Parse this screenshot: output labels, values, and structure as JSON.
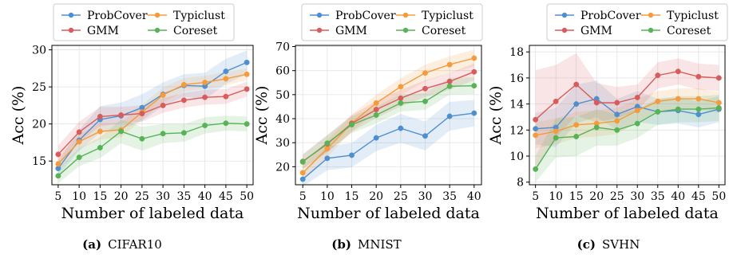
{
  "chart_data": [
    {
      "type": "line",
      "caption": {
        "letter": "(a)",
        "name": "CIFAR10"
      },
      "xlabel": "Number of labeled data",
      "ylabel": "Acc (%)",
      "x": [
        5,
        10,
        15,
        20,
        25,
        30,
        35,
        40,
        45,
        50
      ],
      "xlim": [
        3.5,
        51.5
      ],
      "ylim": [
        11.8,
        30.6
      ],
      "yticks": [
        15,
        20,
        25,
        30
      ],
      "grid": true,
      "legend": "top",
      "series": [
        {
          "name": "ProbCover",
          "color": "#4f8fce",
          "values": [
            14.0,
            17.8,
            20.6,
            21.1,
            22.2,
            24.0,
            25.2,
            25.1,
            27.1,
            28.3
          ],
          "band": [
            1.0,
            1.4,
            1.8,
            1.8,
            1.8,
            1.6,
            1.5,
            1.8,
            1.7,
            1.6
          ]
        },
        {
          "name": "Typiclust",
          "color": "#f59b3c",
          "values": [
            14.6,
            17.6,
            19.0,
            19.2,
            21.6,
            23.9,
            25.3,
            25.6,
            26.1,
            26.7
          ],
          "band": [
            1.0,
            1.0,
            1.1,
            1.0,
            1.0,
            1.0,
            0.9,
            0.9,
            0.9,
            0.8
          ]
        },
        {
          "name": "GMM",
          "color": "#d95c5c",
          "values": [
            15.9,
            18.9,
            21.0,
            21.2,
            21.4,
            22.5,
            23.2,
            23.6,
            23.7,
            24.7
          ],
          "band": [
            1.2,
            1.4,
            1.3,
            1.1,
            1.1,
            1.0,
            1.0,
            1.0,
            1.0,
            1.0
          ]
        },
        {
          "name": "Coreset",
          "color": "#57b356",
          "values": [
            13.0,
            15.5,
            16.8,
            19.0,
            18.0,
            18.7,
            18.8,
            19.8,
            20.1,
            20.0
          ],
          "band": [
            1.0,
            1.2,
            1.4,
            1.6,
            1.6,
            1.3,
            1.2,
            1.1,
            1.0,
            1.0
          ]
        }
      ]
    },
    {
      "type": "line",
      "caption": {
        "letter": "(b)",
        "name": "MNIST"
      },
      "xlabel": "Number of labeled data",
      "ylabel": "Acc (%)",
      "x": [
        5,
        10,
        15,
        20,
        25,
        30,
        35,
        40
      ],
      "xlim": [
        3.5,
        41.5
      ],
      "ylim": [
        12.5,
        70.5
      ],
      "yticks": [
        20,
        30,
        40,
        50,
        60,
        70
      ],
      "grid": true,
      "legend": "top",
      "series": [
        {
          "name": "ProbCover",
          "color": "#4f8fce",
          "values": [
            14.8,
            23.5,
            24.8,
            32.0,
            36.0,
            32.8,
            41.0,
            42.3
          ],
          "band": [
            3.0,
            5.0,
            5.0,
            5.5,
            6.0,
            6.0,
            6.0,
            5.5
          ]
        },
        {
          "name": "Typiclust",
          "color": "#f59b3c",
          "values": [
            17.5,
            27.5,
            38.2,
            46.5,
            53.3,
            59.0,
            62.5,
            65.2
          ],
          "band": [
            3.0,
            3.5,
            3.5,
            3.5,
            3.5,
            3.5,
            3.5,
            3.5
          ]
        },
        {
          "name": "GMM",
          "color": "#d95c5c",
          "values": [
            22.2,
            29.5,
            38.0,
            43.8,
            48.5,
            52.5,
            55.5,
            59.5
          ],
          "band": [
            3.0,
            3.5,
            3.5,
            3.5,
            3.5,
            3.5,
            3.5,
            3.5
          ]
        },
        {
          "name": "Coreset",
          "color": "#57b356",
          "values": [
            22.0,
            29.8,
            37.5,
            41.5,
            46.5,
            47.2,
            53.5,
            53.7
          ],
          "band": [
            3.0,
            3.5,
            3.5,
            3.5,
            3.5,
            3.5,
            3.5,
            3.5
          ]
        }
      ]
    },
    {
      "type": "line",
      "caption": {
        "letter": "(c)",
        "name": "SVHN"
      },
      "xlabel": "Number of labeled data",
      "ylabel": "Acc (%)",
      "x": [
        5,
        10,
        15,
        20,
        25,
        30,
        35,
        40,
        45,
        50
      ],
      "xlim": [
        3.5,
        51.5
      ],
      "ylim": [
        7.8,
        18.5
      ],
      "yticks": [
        8,
        10,
        12,
        14,
        16,
        18
      ],
      "grid": true,
      "legend": "top",
      "series": [
        {
          "name": "ProbCover",
          "color": "#4f8fce",
          "values": [
            12.1,
            12.2,
            14.0,
            14.4,
            13.2,
            13.8,
            13.4,
            13.5,
            13.2,
            13.6
          ],
          "band": [
            1.2,
            1.5,
            1.5,
            1.4,
            1.2,
            1.2,
            1.0,
            1.0,
            1.0,
            1.0
          ]
        },
        {
          "name": "Typiclust",
          "color": "#f59b3c",
          "values": [
            11.6,
            11.9,
            12.4,
            12.5,
            12.7,
            13.5,
            14.2,
            14.4,
            14.4,
            14.1
          ],
          "band": [
            1.0,
            1.0,
            1.0,
            1.0,
            1.0,
            0.9,
            0.8,
            0.8,
            0.8,
            0.8
          ]
        },
        {
          "name": "GMM",
          "color": "#d95c5c",
          "values": [
            12.8,
            14.2,
            15.5,
            14.1,
            14.1,
            14.5,
            16.2,
            16.5,
            16.1,
            16.0
          ],
          "band": [
            3.8,
            2.8,
            2.4,
            1.5,
            1.2,
            1.0,
            1.0,
            1.0,
            1.0,
            1.0
          ]
        },
        {
          "name": "Coreset",
          "color": "#57b356",
          "values": [
            9.0,
            11.4,
            11.5,
            12.2,
            12.0,
            12.5,
            13.4,
            13.6,
            13.6,
            13.7
          ],
          "band": [
            1.0,
            1.5,
            1.5,
            1.4,
            1.2,
            1.1,
            1.0,
            1.0,
            1.0,
            1.0
          ]
        }
      ]
    }
  ]
}
